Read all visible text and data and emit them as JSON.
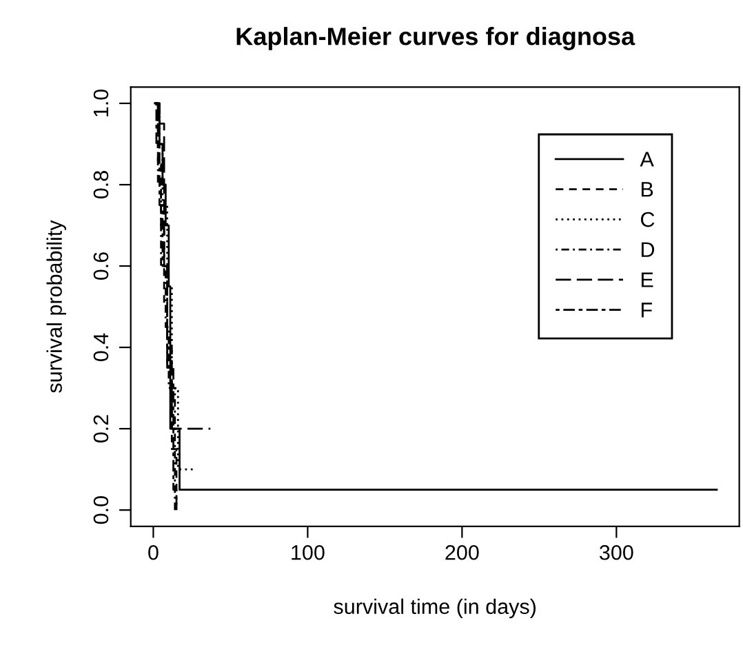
{
  "chart_data": {
    "type": "step",
    "title": "Kaplan-Meier curves for diagnosa",
    "xlabel": "survival time (in days)",
    "ylabel": "survival probability",
    "xlim": [
      -14.6,
      379.6
    ],
    "ylim": [
      -0.04,
      1.04
    ],
    "xticks": [
      0,
      100,
      200,
      300
    ],
    "yticks": [
      {
        "value": 0,
        "label": "0.0"
      },
      {
        "value": 0.2,
        "label": "0.2"
      },
      {
        "value": 0.4,
        "label": "0.4"
      },
      {
        "value": 0.6,
        "label": "0.6"
      },
      {
        "value": 0.8,
        "label": "0.8"
      },
      {
        "value": 1,
        "label": "1.0"
      }
    ],
    "grid": false,
    "legend": "right",
    "marker": "none",
    "series": [
      {
        "name": "A",
        "color": "#000000",
        "line_style": "solid",
        "x": [
          1,
          4,
          6,
          8,
          10,
          11,
          17,
          365
        ],
        "values": [
          1,
          0.9,
          0.8,
          0.7,
          0.55,
          0.2,
          0.05,
          0.05
        ]
      },
      {
        "name": "B",
        "color": "#000000",
        "line_style": "dashed",
        "x": [
          1,
          3,
          5,
          7,
          9,
          12,
          15
        ],
        "values": [
          1,
          0.85,
          0.7,
          0.5,
          0.35,
          0.15,
          0
        ]
      },
      {
        "name": "C",
        "color": "#000000",
        "line_style": "dotted",
        "x": [
          1,
          4,
          6,
          9,
          12,
          16,
          27
        ],
        "values": [
          1,
          0.9,
          0.75,
          0.55,
          0.3,
          0.1,
          0.1
        ]
      },
      {
        "name": "D",
        "color": "#000000",
        "line_style": "dashdot",
        "x": [
          1,
          3,
          5,
          8,
          10,
          14
        ],
        "values": [
          1,
          0.8,
          0.6,
          0.45,
          0.3,
          0
        ]
      },
      {
        "name": "E",
        "color": "#000000",
        "line_style": "longdash",
        "x": [
          1,
          4,
          7,
          9,
          12,
          37
        ],
        "values": [
          1,
          0.95,
          0.6,
          0.4,
          0.2,
          0.2
        ]
      },
      {
        "name": "F",
        "color": "#000000",
        "line_style": "twodash",
        "x": [
          1,
          2,
          4,
          6,
          9,
          13,
          15
        ],
        "values": [
          1,
          0.9,
          0.75,
          0.6,
          0.35,
          0.05,
          0
        ]
      }
    ]
  }
}
